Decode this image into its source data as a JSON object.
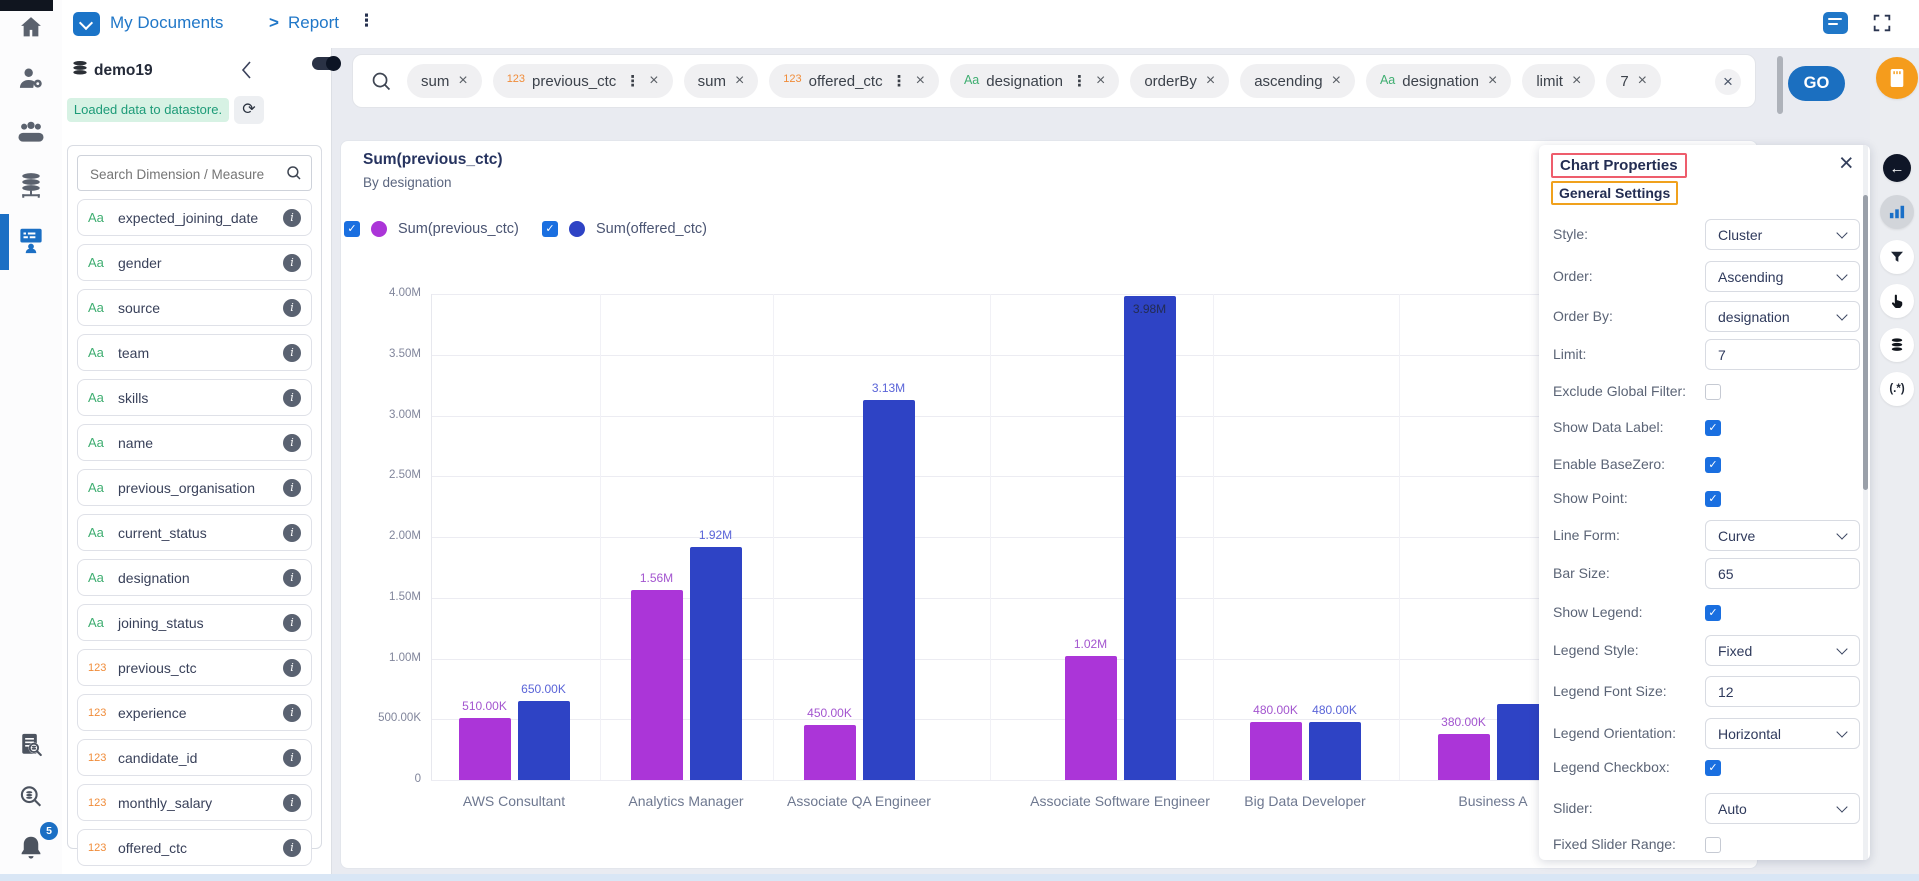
{
  "header": {
    "breadcrumb_root": "My Documents",
    "breadcrumb_sep": ">",
    "breadcrumb_current": "Report"
  },
  "left_rail": {
    "bell_badge": "5",
    "icons_top": [
      "home",
      "user-settings",
      "users-group",
      "database-server",
      "report-board-active"
    ],
    "icons_bottom": [
      "log-search",
      "data-search",
      "notifications-bell"
    ]
  },
  "datasource": {
    "name": "demo19",
    "status_message": "Loaded data to datastore."
  },
  "fields_panel": {
    "search_placeholder": "Search Dimension / Measure",
    "items": [
      {
        "prefix": "Aa",
        "name": "expected_joining_date"
      },
      {
        "prefix": "Aa",
        "name": "gender"
      },
      {
        "prefix": "Aa",
        "name": "source"
      },
      {
        "prefix": "Aa",
        "name": "team"
      },
      {
        "prefix": "Aa",
        "name": "skills"
      },
      {
        "prefix": "Aa",
        "name": "name"
      },
      {
        "prefix": "Aa",
        "name": "previous_organisation"
      },
      {
        "prefix": "Aa",
        "name": "current_status"
      },
      {
        "prefix": "Aa",
        "name": "designation"
      },
      {
        "prefix": "Aa",
        "name": "joining_status"
      },
      {
        "prefix": "123",
        "name": "previous_ctc"
      },
      {
        "prefix": "123",
        "name": "experience"
      },
      {
        "prefix": "123",
        "name": "candidate_id"
      },
      {
        "prefix": "123",
        "name": "monthly_salary"
      },
      {
        "prefix": "123",
        "name": "offered_ctc"
      }
    ]
  },
  "query_bar": {
    "chips": [
      {
        "label": "sum"
      },
      {
        "prefix": "123",
        "label": "previous_ctc",
        "menu": true
      },
      {
        "label": "sum"
      },
      {
        "prefix": "123",
        "label": "offered_ctc",
        "menu": true
      },
      {
        "prefix": "Aa",
        "label": "designation",
        "menu": true
      },
      {
        "label": "orderBy"
      },
      {
        "label": "ascending"
      },
      {
        "prefix": "Aa",
        "label": "designation"
      },
      {
        "label": "limit"
      },
      {
        "label": "7"
      }
    ],
    "go_label": "GO"
  },
  "chart_data": {
    "type": "bar",
    "title": "Sum(previous_ctc)",
    "subtitle": "By designation",
    "categories": [
      "AWS Consultant",
      "Analytics Manager",
      "Associate QA Engineer",
      "Associate Software Engineer",
      "Big Data Developer",
      "Business A"
    ],
    "series": [
      {
        "name": "Sum(previous_ctc)",
        "color": "#ab35d8",
        "label_color": "#a355cf",
        "legend_checked": true,
        "values": [
          510000,
          1560000,
          450000,
          1020000,
          480000,
          380000
        ],
        "labels": [
          "510.00K",
          "1.56M",
          "450.00K",
          "1.02M",
          "480.00K",
          "380.00K"
        ]
      },
      {
        "name": "Sum(offered_ctc)",
        "color": "#2e43c5",
        "label_color": "#5a64d8",
        "legend_checked": true,
        "values": [
          650000,
          1920000,
          3130000,
          3980000,
          480000,
          625000
        ],
        "labels": [
          "650.00K",
          "1.92M",
          "3.13M",
          "3.98M",
          "480.00K",
          ""
        ]
      }
    ],
    "ylim": [
      0,
      4000000
    ],
    "yticks": [
      {
        "label": "4.00M",
        "value": 4000000
      },
      {
        "label": "3.50M",
        "value": 3500000
      },
      {
        "label": "3.00M",
        "value": 3000000
      },
      {
        "label": "2.50M",
        "value": 2500000
      },
      {
        "label": "2.00M",
        "value": 2000000
      },
      {
        "label": "1.50M",
        "value": 1500000
      },
      {
        "label": "1.00M",
        "value": 1000000
      },
      {
        "label": "500.00K",
        "value": 500000
      },
      {
        "label": "0",
        "value": 0
      }
    ],
    "grid": true,
    "legend_position": "top-left",
    "inside_label_color": "#232c52"
  },
  "properties_panel": {
    "title": "Chart Properties",
    "section": "General Settings",
    "fields": [
      {
        "label": "Style:",
        "type": "select",
        "value": "Cluster"
      },
      {
        "label": "Order:",
        "type": "select",
        "value": "Ascending"
      },
      {
        "label": "Order By:",
        "type": "select",
        "value": "designation"
      },
      {
        "label": "Limit:",
        "type": "input",
        "value": "7"
      },
      {
        "label": "Exclude Global Filter:",
        "type": "checkbox",
        "checked": false
      },
      {
        "label": "Show Data Label:",
        "type": "checkbox",
        "checked": true
      },
      {
        "label": "Enable BaseZero:",
        "type": "checkbox",
        "checked": true
      },
      {
        "label": "Show Point:",
        "type": "checkbox",
        "checked": true
      },
      {
        "label": "Line Form:",
        "type": "select",
        "value": "Curve"
      },
      {
        "label": "Bar Size:",
        "type": "input",
        "value": "65"
      },
      {
        "label": "Show Legend:",
        "type": "checkbox",
        "checked": true
      },
      {
        "label": "Legend Style:",
        "type": "select",
        "value": "Fixed"
      },
      {
        "label": "Legend Font Size:",
        "type": "input",
        "value": "12"
      },
      {
        "label": "Legend Orientation:",
        "type": "select",
        "value": "Horizontal"
      },
      {
        "label": "Legend Checkbox:",
        "type": "checkbox",
        "checked": true
      },
      {
        "label": "Slider:",
        "type": "select",
        "value": "Auto"
      },
      {
        "label": "Fixed Slider Range:",
        "type": "checkbox",
        "checked": false
      }
    ]
  },
  "toolbar_icons": [
    "save-card",
    "back-arrow",
    "chart-active",
    "filter-funnel",
    "pointer-hand",
    "datastore",
    "regex"
  ],
  "colors": {
    "accent_blue": "#1b6fc0",
    "checkbox_blue": "#1a6fe0",
    "title_highlight_box": "#ee5d6c",
    "section_highlight_box": "#f0a11d",
    "badge_bg": "#d7f2e4",
    "badge_text": "#1d9b78",
    "prefix_text_green": "#3fae71",
    "prefix_number_orange": "#f08c39",
    "toolbar_orange": "#f59c1c",
    "bar_purple": "#ab35d8",
    "bar_blue": "#2e43c5"
  }
}
